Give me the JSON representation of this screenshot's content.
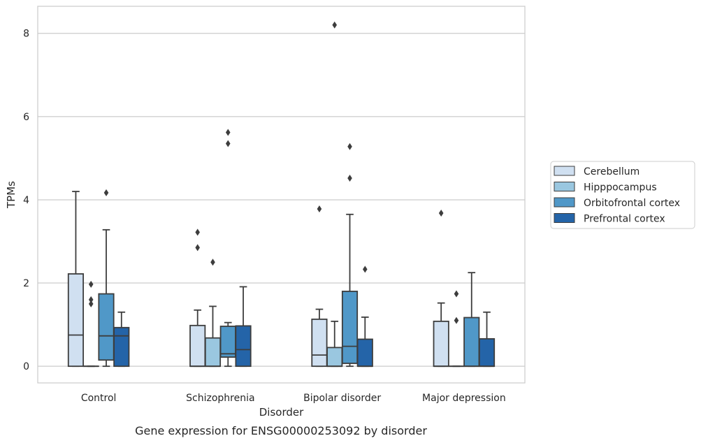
{
  "chart_data": {
    "type": "boxplot",
    "caption": "Gene expression for ENSG00000253092 by disorder",
    "xlabel": "Disorder",
    "ylabel": "TPMs",
    "ylim": [
      -0.4,
      8.65
    ],
    "yticks": [
      0,
      2,
      4,
      6,
      8
    ],
    "grid": true,
    "legend_position": "right",
    "categories": [
      "Control",
      "Schizophrenia",
      "Bipolar disorder",
      "Major depression"
    ],
    "series": [
      {
        "name": "Cerebellum",
        "color": "#d0e0f1",
        "boxes": [
          {
            "whislo": 0,
            "q1": 0,
            "med": 0.75,
            "q3": 2.22,
            "whishi": 4.2,
            "fliers": []
          },
          {
            "whislo": 0,
            "q1": 0,
            "med": 0,
            "q3": 0.98,
            "whishi": 1.35,
            "fliers": [
              2.85,
              3.22
            ]
          },
          {
            "whislo": 0,
            "q1": 0,
            "med": 0.27,
            "q3": 1.13,
            "whishi": 1.37,
            "fliers": [
              3.78
            ]
          },
          {
            "whislo": 0,
            "q1": 0,
            "med": 0,
            "q3": 1.08,
            "whishi": 1.52,
            "fliers": [
              3.68
            ]
          }
        ]
      },
      {
        "name": "Hipppocampus",
        "color": "#9ac7e0",
        "boxes": [
          {
            "whislo": 0,
            "q1": 0,
            "med": 0,
            "q3": 0,
            "whishi": 0,
            "fliers": [
              1.5,
              1.6,
              1.97
            ]
          },
          {
            "whislo": 0,
            "q1": 0,
            "med": 0,
            "q3": 0.68,
            "whishi": 1.44,
            "fliers": [
              2.5
            ]
          },
          {
            "whislo": 0,
            "q1": 0,
            "med": 0,
            "q3": 0.45,
            "whishi": 1.08,
            "fliers": [
              8.2
            ]
          },
          {
            "whislo": 0,
            "q1": 0,
            "med": 0,
            "q3": 0,
            "whishi": 0,
            "fliers": [
              1.1,
              1.74
            ]
          }
        ]
      },
      {
        "name": "Orbitofrontal cortex",
        "color": "#5098c8",
        "boxes": [
          {
            "whislo": 0,
            "q1": 0.15,
            "med": 0.73,
            "q3": 1.74,
            "whishi": 3.28,
            "fliers": [
              4.17
            ]
          },
          {
            "whislo": 0,
            "q1": 0.22,
            "med": 0.3,
            "q3": 0.96,
            "whishi": 1.05,
            "fliers": [
              5.35,
              5.62
            ]
          },
          {
            "whislo": 0,
            "q1": 0.07,
            "med": 0.48,
            "q3": 1.8,
            "whishi": 3.65,
            "fliers": [
              4.52,
              5.28
            ]
          },
          {
            "whislo": 0,
            "q1": 0,
            "med": 0,
            "q3": 1.17,
            "whishi": 2.25,
            "fliers": []
          }
        ]
      },
      {
        "name": "Prefrontal cortex",
        "color": "#2464a8",
        "boxes": [
          {
            "whislo": 0,
            "q1": 0,
            "med": 0.73,
            "q3": 0.93,
            "whishi": 1.3,
            "fliers": []
          },
          {
            "whislo": 0,
            "q1": 0,
            "med": 0.4,
            "q3": 0.97,
            "whishi": 1.91,
            "fliers": []
          },
          {
            "whislo": 0,
            "q1": 0,
            "med": 0,
            "q3": 0.65,
            "whishi": 1.18,
            "fliers": [
              2.33
            ]
          },
          {
            "whislo": 0,
            "q1": 0,
            "med": 0,
            "q3": 0.66,
            "whishi": 1.3,
            "fliers": []
          }
        ]
      }
    ]
  }
}
